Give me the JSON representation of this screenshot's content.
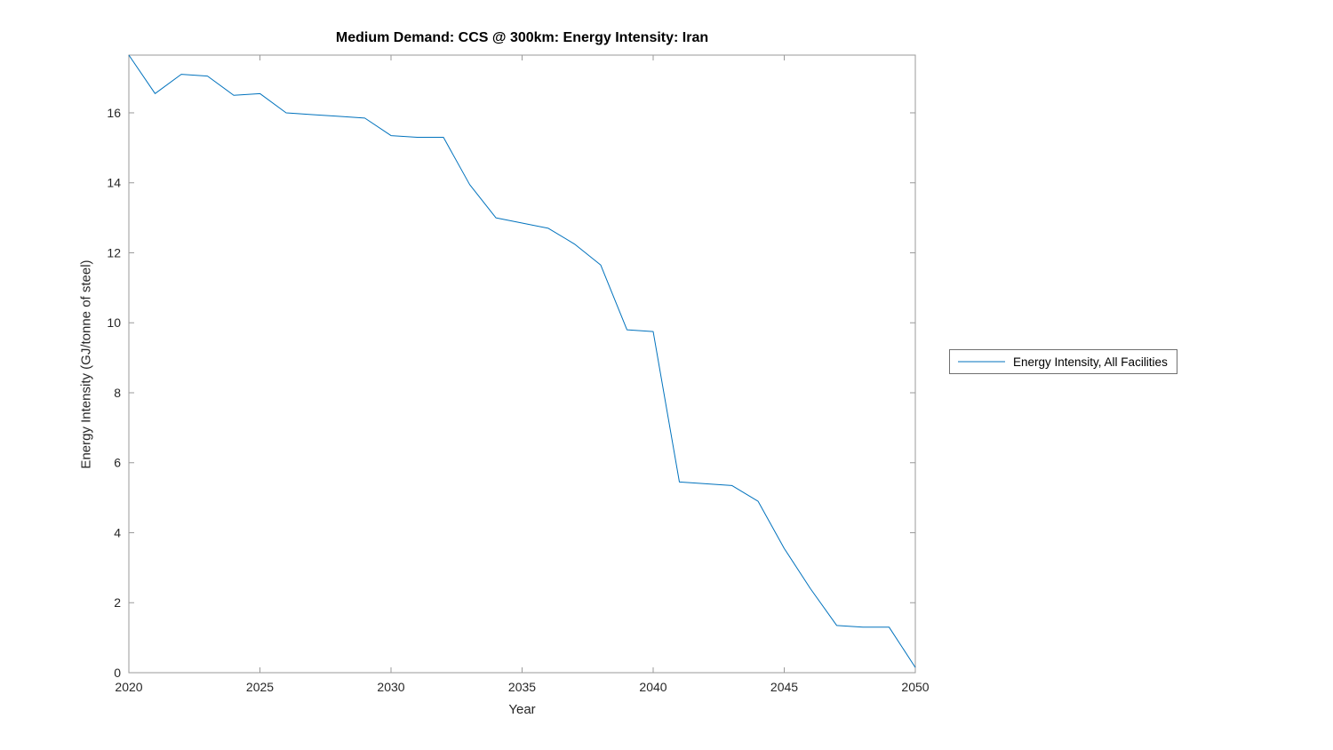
{
  "chart_data": {
    "type": "line",
    "title": "Medium Demand: CCS @ 300km: Energy Intensity: Iran",
    "xlabel": "Year",
    "ylabel": "Energy Intensity (GJ/tonne of steel)",
    "xlim": [
      2020,
      2050
    ],
    "ylim": [
      0,
      17.65
    ],
    "xticks": [
      2020,
      2025,
      2030,
      2035,
      2040,
      2045,
      2050
    ],
    "yticks": [
      0,
      2,
      4,
      6,
      8,
      10,
      12,
      14,
      16
    ],
    "grid": false,
    "legend_position": "right-outside",
    "axis_color": "#9a9a9a",
    "tick_label_color": "#262626",
    "series": [
      {
        "name": "Energy Intensity, All Facilities",
        "color": "#0072BD",
        "x": [
          2020,
          2021,
          2022,
          2023,
          2024,
          2025,
          2026,
          2027,
          2028,
          2029,
          2030,
          2031,
          2032,
          2033,
          2034,
          2035,
          2036,
          2037,
          2038,
          2039,
          2040,
          2041,
          2042,
          2043,
          2044,
          2045,
          2046,
          2047,
          2048,
          2049,
          2050
        ],
        "y": [
          17.65,
          16.55,
          17.1,
          17.05,
          16.5,
          16.55,
          16.0,
          15.95,
          15.9,
          15.85,
          15.35,
          15.3,
          15.3,
          13.95,
          13.0,
          12.85,
          12.7,
          12.25,
          11.65,
          9.8,
          9.75,
          5.45,
          5.4,
          5.35,
          4.9,
          3.55,
          2.4,
          1.35,
          1.3,
          1.3,
          0.15
        ]
      }
    ]
  }
}
